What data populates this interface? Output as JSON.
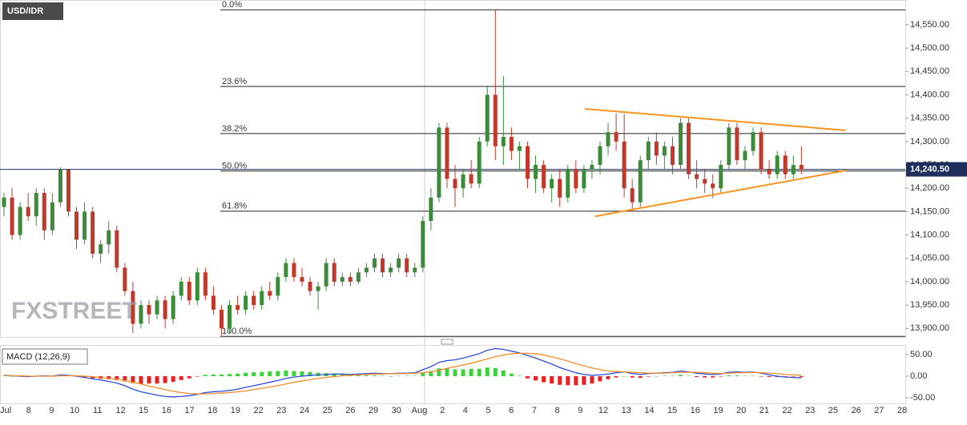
{
  "chart_data": [
    {
      "type": "candlestick",
      "title": "USD/IDR",
      "watermark": "FXSTREET",
      "up_color": "#3b8b3b",
      "down_color": "#c0392b",
      "xlim": [
        -0.5,
        111.9
      ],
      "ylim": [
        13880,
        14603
      ],
      "yticks": [
        {
          "value": 13900,
          "label": "13,900.00"
        },
        {
          "value": 13950,
          "label": "13,950.00"
        },
        {
          "value": 14000,
          "label": "14,000.00"
        },
        {
          "value": 14050,
          "label": "14,050.00"
        },
        {
          "value": 14100,
          "label": "14,100.00"
        },
        {
          "value": 14150,
          "label": "14,150.00"
        },
        {
          "value": 14200,
          "label": "14,200.00"
        },
        {
          "value": 14250,
          "label": "14,250.00"
        },
        {
          "value": 14300,
          "label": "14,300.00"
        },
        {
          "value": 14350,
          "label": "14,350.00"
        },
        {
          "value": 14400,
          "label": "14,400.00"
        },
        {
          "value": 14450,
          "label": "14,450.00"
        },
        {
          "value": 14500,
          "label": "14,500.00"
        },
        {
          "value": 14550,
          "label": "14,550.00"
        }
      ],
      "xtick_labels": [
        "Jul",
        "8",
        "9",
        "10",
        "11",
        "12",
        "15",
        "16",
        "17",
        "18",
        "19",
        "22",
        "23",
        "24",
        "25",
        "26",
        "29",
        "30",
        "Aug",
        "2",
        "4",
        "5",
        "6",
        "7",
        "8",
        "9",
        "12",
        "13",
        "14",
        "15",
        "16",
        "19",
        "20",
        "21",
        "22",
        "23",
        "25",
        "26",
        "27",
        "28"
      ],
      "current_price": {
        "value": 14240.5,
        "label": "14,240.50"
      },
      "fib_levels": [
        {
          "value": 14582,
          "label": "0.0%"
        },
        {
          "value": 14418,
          "label": "23.6%"
        },
        {
          "value": 14317,
          "label": "38.2%"
        },
        {
          "value": 14237,
          "label": "50.0%"
        },
        {
          "value": 14151,
          "label": "61.8%"
        },
        {
          "value": 13883,
          "label": "100.0%"
        }
      ],
      "trendlines": [
        {
          "color": "#f7931e",
          "x": [
            72.1,
            104.5
          ],
          "y": [
            14370,
            14324
          ]
        },
        {
          "color": "#f7931e",
          "x": [
            73.4,
            104.5
          ],
          "y": [
            14140,
            14238
          ]
        }
      ],
      "ohlc": [
        [
          14160,
          14190,
          14140,
          14180
        ],
        [
          14180,
          14200,
          14090,
          14100
        ],
        [
          14100,
          14170,
          14090,
          14160
        ],
        [
          14160,
          14190,
          14130,
          14140
        ],
        [
          14140,
          14200,
          14120,
          14190
        ],
        [
          14190,
          14200,
          14090,
          14110
        ],
        [
          14110,
          14190,
          14100,
          14170
        ],
        [
          14170,
          14245,
          14160,
          14240
        ],
        [
          14240,
          14240,
          14140,
          14150
        ],
        [
          14150,
          14160,
          14070,
          14090
        ],
        [
          14090,
          14170,
          14080,
          14150
        ],
        [
          14150,
          14160,
          14050,
          14060
        ],
        [
          14060,
          14090,
          14040,
          14080
        ],
        [
          14080,
          14130,
          14060,
          14110
        ],
        [
          14110,
          14120,
          14020,
          14030
        ],
        [
          14030,
          14040,
          13970,
          13980
        ],
        [
          13980,
          14000,
          13890,
          13910
        ],
        [
          13910,
          13960,
          13900,
          13950
        ],
        [
          13950,
          13960,
          13910,
          13930
        ],
        [
          13930,
          13970,
          13920,
          13960
        ],
        [
          13960,
          13970,
          13900,
          13920
        ],
        [
          13920,
          13980,
          13910,
          13970
        ],
        [
          13970,
          14010,
          13960,
          14000
        ],
        [
          14000,
          14010,
          13950,
          13960
        ],
        [
          13960,
          14030,
          13950,
          14020
        ],
        [
          14020,
          14030,
          13960,
          13970
        ],
        [
          13970,
          13990,
          13930,
          13940
        ],
        [
          13940,
          13950,
          13885,
          13900
        ],
        [
          13900,
          13960,
          13890,
          13950
        ],
        [
          13950,
          13970,
          13930,
          13940
        ],
        [
          13940,
          13980,
          13930,
          13970
        ],
        [
          13970,
          13980,
          13940,
          13950
        ],
        [
          13950,
          13990,
          13940,
          13980
        ],
        [
          13980,
          14000,
          13960,
          13970
        ],
        [
          13970,
          14020,
          13960,
          14010
        ],
        [
          14010,
          14050,
          14000,
          14040
        ],
        [
          14040,
          14050,
          14000,
          14010
        ],
        [
          14010,
          14030,
          13990,
          14000
        ],
        [
          14000,
          14010,
          13970,
          13980
        ],
        [
          13980,
          14000,
          13940,
          13990
        ],
        [
          13990,
          14050,
          13980,
          14040
        ],
        [
          14040,
          14050,
          13990,
          14000
        ],
        [
          14000,
          14020,
          13990,
          14010
        ],
        [
          14010,
          14020,
          13990,
          14000
        ],
        [
          14000,
          14030,
          13995,
          14020
        ],
        [
          14020,
          14040,
          14010,
          14030
        ],
        [
          14030,
          14060,
          14020,
          14050
        ],
        [
          14050,
          14060,
          14010,
          14020
        ],
        [
          14020,
          14040,
          14010,
          14030
        ],
        [
          14030,
          14060,
          14020,
          14050
        ],
        [
          14050,
          14060,
          14010,
          14020
        ],
        [
          14020,
          14040,
          14010,
          14030
        ],
        [
          14030,
          14140,
          14020,
          14130
        ],
        [
          14130,
          14200,
          14110,
          14180
        ],
        [
          14180,
          14340,
          14170,
          14330
        ],
        [
          14330,
          14340,
          14200,
          14220
        ],
        [
          14220,
          14250,
          14160,
          14200
        ],
        [
          14200,
          14240,
          14180,
          14230
        ],
        [
          14230,
          14260,
          14200,
          14210
        ],
        [
          14210,
          14310,
          14200,
          14300
        ],
        [
          14300,
          14420,
          14290,
          14400
        ],
        [
          14400,
          14582,
          14260,
          14290
        ],
        [
          14290,
          14440,
          14250,
          14310
        ],
        [
          14310,
          14330,
          14260,
          14280
        ],
        [
          14280,
          14300,
          14240,
          14290
        ],
        [
          14290,
          14300,
          14200,
          14220
        ],
        [
          14220,
          14270,
          14190,
          14250
        ],
        [
          14250,
          14260,
          14190,
          14200
        ],
        [
          14200,
          14230,
          14170,
          14220
        ],
        [
          14220,
          14240,
          14160,
          14180
        ],
        [
          14180,
          14250,
          14170,
          14240
        ],
        [
          14240,
          14260,
          14190,
          14200
        ],
        [
          14200,
          14250,
          14190,
          14240
        ],
        [
          14240,
          14260,
          14220,
          14250
        ],
        [
          14250,
          14300,
          14230,
          14290
        ],
        [
          14290,
          14340,
          14270,
          14320
        ],
        [
          14320,
          14360,
          14280,
          14300
        ],
        [
          14300,
          14360,
          14180,
          14200
        ],
        [
          14200,
          14220,
          14150,
          14170
        ],
        [
          14170,
          14270,
          14160,
          14260
        ],
        [
          14260,
          14310,
          14240,
          14300
        ],
        [
          14300,
          14320,
          14250,
          14270
        ],
        [
          14270,
          14300,
          14240,
          14290
        ],
        [
          14290,
          14310,
          14230,
          14250
        ],
        [
          14250,
          14350,
          14240,
          14340
        ],
        [
          14340,
          14350,
          14220,
          14230
        ],
        [
          14230,
          14260,
          14200,
          14220
        ],
        [
          14220,
          14240,
          14190,
          14210
        ],
        [
          14210,
          14230,
          14180,
          14200
        ],
        [
          14200,
          14260,
          14190,
          14250
        ],
        [
          14250,
          14340,
          14240,
          14330
        ],
        [
          14330,
          14340,
          14250,
          14260
        ],
        [
          14260,
          14290,
          14240,
          14280
        ],
        [
          14280,
          14330,
          14270,
          14320
        ],
        [
          14320,
          14330,
          14230,
          14240
        ],
        [
          14240,
          14260,
          14220,
          14230
        ],
        [
          14230,
          14280,
          14220,
          14270
        ],
        [
          14270,
          14280,
          14220,
          14230
        ],
        [
          14230,
          14270,
          14220,
          14250
        ],
        [
          14250,
          14290,
          14230,
          14240
        ]
      ]
    },
    {
      "type": "macd",
      "title": "MACD (12,26,9)",
      "ylim": [
        -64.8,
        70.4
      ],
      "yticks": [
        {
          "value": 50,
          "label": "50.00"
        },
        {
          "value": 0,
          "label": "0.00"
        },
        {
          "value": -50,
          "label": "-50.00"
        }
      ],
      "histogram": {
        "up_color": "#3ed13e",
        "down_color": "#e52222",
        "values": [
          1,
          0,
          -1,
          -1,
          0,
          1,
          0,
          2,
          1,
          -1,
          -3,
          -5,
          -6,
          -7,
          -9,
          -12,
          -16,
          -18,
          -17,
          -17,
          -16,
          -13,
          -9,
          -5,
          -1,
          3,
          4,
          4,
          5,
          6,
          8,
          9,
          10,
          11,
          12,
          13,
          12,
          11,
          10,
          8,
          7,
          6,
          4,
          2,
          2,
          2,
          2,
          1,
          0,
          1,
          1,
          1,
          7,
          12,
          18,
          18,
          16,
          16,
          17,
          17,
          20,
          19,
          13,
          6,
          1,
          -5,
          -10,
          -14,
          -17,
          -20,
          -21,
          -21,
          -20,
          -17,
          -12,
          -7,
          -3,
          0,
          -3,
          -4,
          -1,
          0,
          1,
          1,
          3,
          1,
          -2,
          -3,
          -3,
          -1,
          2,
          2,
          1,
          1,
          -1,
          -2,
          -2,
          -1,
          -1,
          -2
        ]
      },
      "series": [
        {
          "color": "#2c4fd8",
          "values": [
            2,
            1,
            0,
            -1,
            0,
            1,
            0,
            3,
            2,
            0,
            -3,
            -6,
            -9,
            -12,
            -16,
            -22,
            -30,
            -36,
            -40,
            -44,
            -47,
            -48,
            -47,
            -45,
            -42,
            -38,
            -36,
            -35,
            -33,
            -30,
            -26,
            -22,
            -18,
            -14,
            -10,
            -5,
            -2,
            0,
            2,
            3,
            4,
            5,
            5,
            4,
            5,
            6,
            7,
            6,
            6,
            7,
            7,
            8,
            15,
            22,
            32,
            36,
            38,
            42,
            47,
            52,
            60,
            64,
            62,
            58,
            54,
            48,
            42,
            35,
            28,
            20,
            14,
            8,
            4,
            2,
            3,
            5,
            8,
            10,
            6,
            4,
            6,
            7,
            8,
            9,
            12,
            10,
            7,
            5,
            4,
            5,
            9,
            10,
            9,
            10,
            7,
            3,
            0,
            -2,
            -3,
            -4
          ]
        },
        {
          "color": "#f28c28",
          "values": [
            1,
            1,
            1,
            0,
            0,
            0,
            0,
            1,
            1,
            1,
            0,
            -1,
            -3,
            -5,
            -7,
            -10,
            -14,
            -18,
            -23,
            -27,
            -31,
            -35,
            -38,
            -40,
            -41,
            -41,
            -40,
            -39,
            -38,
            -36,
            -34,
            -31,
            -28,
            -25,
            -22,
            -18,
            -14,
            -11,
            -8,
            -5,
            -3,
            -1,
            1,
            2,
            3,
            4,
            5,
            5,
            6,
            6,
            6,
            7,
            8,
            10,
            14,
            18,
            22,
            26,
            30,
            35,
            40,
            45,
            49,
            52,
            53,
            53,
            52,
            49,
            45,
            40,
            35,
            29,
            24,
            19,
            15,
            12,
            11,
            10,
            9,
            8,
            7,
            7,
            7,
            8,
            9,
            9,
            9,
            8,
            7,
            6,
            7,
            8,
            8,
            9,
            8,
            7,
            6,
            4,
            3,
            2
          ]
        }
      ]
    }
  ]
}
